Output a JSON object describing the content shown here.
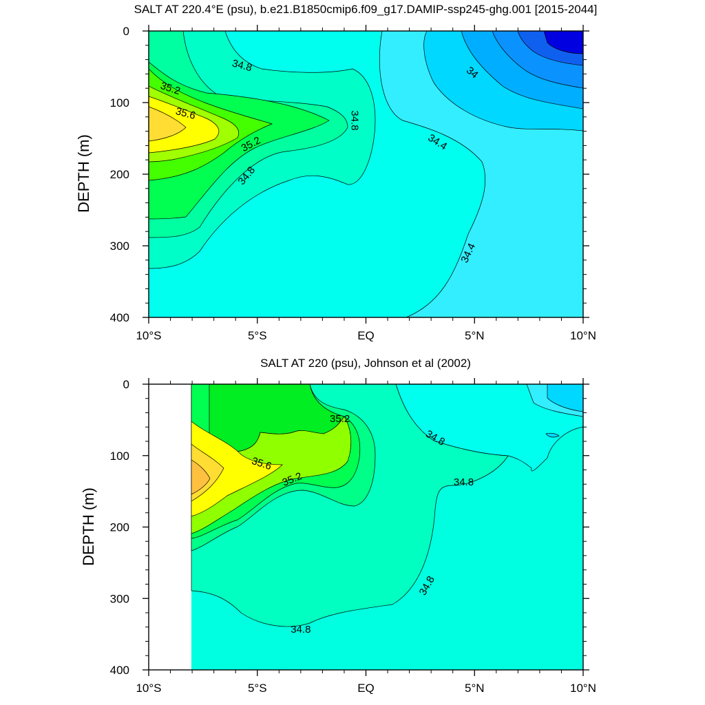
{
  "chart_data": [
    {
      "type": "contour",
      "title": "SALT AT 220.4°E (psu), b.e21.B1850cmip6.f09_g17.DAMIP-ssp245-ghg.001 [2015-2044]",
      "ylabel": "DEPTH (m)",
      "xlabel": "",
      "x_ticks": [
        "10°S",
        "5°S",
        "EQ",
        "5°N",
        "10°N"
      ],
      "x_tick_values": [
        -10,
        -5,
        0,
        5,
        10
      ],
      "y_ticks": [
        "0",
        "100",
        "200",
        "300",
        "400"
      ],
      "y_tick_values": [
        0,
        100,
        200,
        300,
        400
      ],
      "xlim": [
        -10,
        10
      ],
      "ylim": [
        400,
        0
      ],
      "contour_interval": 0.2,
      "contour_labels": [
        {
          "text": "34.8",
          "lat": -5.7,
          "depth": 48,
          "angle": 15
        },
        {
          "text": "35.2",
          "lat": -9.0,
          "depth": 80,
          "angle": 18
        },
        {
          "text": "35.6",
          "lat": -8.3,
          "depth": 115,
          "angle": 15
        },
        {
          "text": "35.2",
          "lat": -5.3,
          "depth": 158,
          "angle": -28
        },
        {
          "text": "34.8",
          "lat": -5.5,
          "depth": 202,
          "angle": -50
        },
        {
          "text": "34.8",
          "lat": -0.5,
          "depth": 125,
          "angle": 90
        },
        {
          "text": "34",
          "lat": 4.9,
          "depth": 58,
          "angle": 40
        },
        {
          "text": "34.4",
          "lat": 3.3,
          "depth": 155,
          "angle": 32
        },
        {
          "text": "34.4",
          "lat": 4.7,
          "depth": 310,
          "angle": -65
        }
      ]
    },
    {
      "type": "contour",
      "title": "SALT AT 220 (psu), Johnson et al (2002)",
      "ylabel": "DEPTH (m)",
      "xlabel": "",
      "x_ticks": [
        "10°S",
        "5°S",
        "EQ",
        "5°N",
        "10°N"
      ],
      "x_tick_values": [
        -10,
        -5,
        0,
        5,
        10
      ],
      "y_ticks": [
        "0",
        "100",
        "200",
        "300",
        "400"
      ],
      "y_tick_values": [
        0,
        100,
        200,
        300,
        400
      ],
      "xlim": [
        -10,
        10
      ],
      "ylim": [
        400,
        0
      ],
      "data_xmin": -8,
      "contour_interval": 0.2,
      "contour_labels": [
        {
          "text": "35.2",
          "lat": -1.2,
          "depth": 48,
          "angle": 0
        },
        {
          "text": "34.8",
          "lat": 3.2,
          "depth": 75,
          "angle": 30
        },
        {
          "text": "35.6",
          "lat": -4.8,
          "depth": 111,
          "angle": 18
        },
        {
          "text": "35.2",
          "lat": -3.4,
          "depth": 133,
          "angle": -22
        },
        {
          "text": "34.8",
          "lat": 4.5,
          "depth": 137,
          "angle": 0
        },
        {
          "text": "34.8",
          "lat": 2.8,
          "depth": 282,
          "angle": -60
        },
        {
          "text": "34.8",
          "lat": -3.0,
          "depth": 343,
          "angle": 0
        }
      ]
    }
  ]
}
